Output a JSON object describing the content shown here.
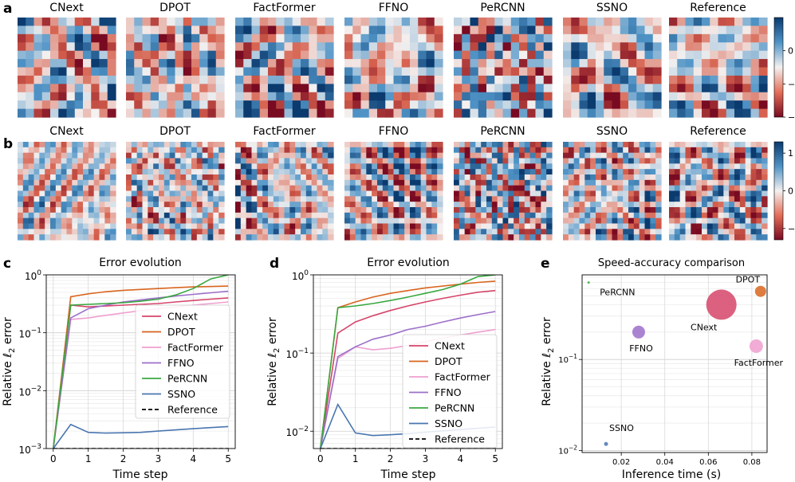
{
  "panels_fields": [
    {
      "letter": "a",
      "titles": [
        "CNext",
        "DPOT",
        "FactFormer",
        "FFNO",
        "PeRCNN",
        "SSNO",
        "Reference"
      ],
      "colorbar": {
        "ticks": [
          0,
          -2,
          -4
        ],
        "range": [
          -4,
          2
        ]
      }
    },
    {
      "letter": "b",
      "titles": [
        "CNext",
        "DPOT",
        "FactFormer",
        "FFNO",
        "PeRCNN",
        "SSNO",
        "Reference"
      ],
      "colorbar": {
        "ticks": [
          1,
          0,
          -1
        ],
        "range": [
          -1.3,
          1.3
        ]
      }
    }
  ],
  "colors": {
    "CNext": "#d6456a",
    "DPOT": "#d9651f",
    "FactFormer": "#ef9fcf",
    "FFNO": "#9c6fc9",
    "PeRCNN": "#39a840",
    "SSNO": "#4a76b0",
    "Reference": "#000000",
    "blue": "#1f4f8f",
    "red": "#b2182b"
  },
  "chart_data": [
    {
      "letter": "c",
      "type": "line",
      "title": "Error evolution",
      "xlabel": "Time step",
      "ylabel": "Relative ℓ2 error",
      "ylabel_main": "Relative ",
      "ylabel_var": "ℓ",
      "ylabel_sub": "2",
      "ylabel_tail": " error",
      "yscale": "log",
      "xlim": [
        -0.2,
        5.2
      ],
      "ylim": [
        0.001,
        1
      ],
      "xticks": [
        "0",
        "1",
        "2",
        "3",
        "4",
        "5"
      ],
      "yticks": [
        {
          "base": "10",
          "exp": "0"
        },
        {
          "base": "10",
          "exp": "-1"
        },
        {
          "base": "10",
          "exp": "-2"
        },
        {
          "base": "10",
          "exp": "-3"
        }
      ],
      "x": [
        0,
        0.5,
        1,
        1.5,
        2,
        2.5,
        3,
        3.5,
        4,
        4.5,
        5
      ],
      "series": [
        {
          "name": "CNext",
          "values": [
            0.001,
            0.3,
            0.28,
            0.29,
            0.3,
            0.31,
            0.32,
            0.34,
            0.36,
            0.38,
            0.4
          ]
        },
        {
          "name": "DPOT",
          "values": [
            0.001,
            0.42,
            0.47,
            0.51,
            0.54,
            0.56,
            0.58,
            0.6,
            0.62,
            0.63,
            0.64
          ]
        },
        {
          "name": "FactFormer",
          "values": [
            0.001,
            0.17,
            0.18,
            0.2,
            0.22,
            0.24,
            0.26,
            0.28,
            0.3,
            0.32,
            0.34
          ]
        },
        {
          "name": "FFNO",
          "values": [
            0.001,
            0.18,
            0.26,
            0.3,
            0.34,
            0.37,
            0.4,
            0.43,
            0.46,
            0.49,
            0.52
          ]
        },
        {
          "name": "PeRCNN",
          "values": [
            0.001,
            0.3,
            0.31,
            0.32,
            0.33,
            0.35,
            0.38,
            0.45,
            0.58,
            0.85,
            1.0
          ]
        },
        {
          "name": "SSNO",
          "values": [
            0.001,
            0.0026,
            0.0019,
            0.00185,
            0.00187,
            0.0019,
            0.002,
            0.0021,
            0.0022,
            0.0023,
            0.0024
          ]
        },
        {
          "name": "Reference",
          "values": [
            0.001,
            0.001,
            0.001,
            0.001,
            0.001,
            0.001,
            0.001,
            0.001,
            0.001,
            0.001,
            0.001
          ]
        }
      ]
    },
    {
      "letter": "d",
      "type": "line",
      "title": "Error evolution",
      "xlabel": "Time step",
      "ylabel": "Relative ℓ2 error",
      "ylabel_main": "Relative ",
      "ylabel_var": "ℓ",
      "ylabel_sub": "2",
      "ylabel_tail": " error",
      "yscale": "log",
      "xlim": [
        -0.2,
        5.2
      ],
      "ylim": [
        0.006,
        1
      ],
      "xticks": [
        "0",
        "1",
        "2",
        "3",
        "4",
        "5"
      ],
      "yticks": [
        {
          "base": "10",
          "exp": "0"
        },
        {
          "base": "10",
          "exp": "-1"
        },
        {
          "base": "10",
          "exp": "-2"
        }
      ],
      "x": [
        0,
        0.5,
        1,
        1.5,
        2,
        2.5,
        3,
        3.5,
        4,
        4.5,
        5
      ],
      "series": [
        {
          "name": "CNext",
          "values": [
            0.006,
            0.18,
            0.25,
            0.3,
            0.35,
            0.4,
            0.45,
            0.5,
            0.55,
            0.6,
            0.63
          ]
        },
        {
          "name": "DPOT",
          "values": [
            0.006,
            0.38,
            0.45,
            0.52,
            0.58,
            0.63,
            0.68,
            0.72,
            0.76,
            0.8,
            0.83
          ]
        },
        {
          "name": "FactFormer",
          "values": [
            0.006,
            0.085,
            0.12,
            0.11,
            0.115,
            0.125,
            0.14,
            0.155,
            0.17,
            0.185,
            0.2
          ]
        },
        {
          "name": "FFNO",
          "values": [
            0.006,
            0.09,
            0.12,
            0.15,
            0.17,
            0.2,
            0.22,
            0.25,
            0.28,
            0.31,
            0.34
          ]
        },
        {
          "name": "PeRCNN",
          "values": [
            0.006,
            0.38,
            0.4,
            0.43,
            0.47,
            0.52,
            0.58,
            0.65,
            0.76,
            0.95,
            1.0
          ]
        },
        {
          "name": "SSNO",
          "values": [
            0.006,
            0.022,
            0.0095,
            0.0088,
            0.009,
            0.0093,
            0.0097,
            0.0101,
            0.0105,
            0.0109,
            0.0113
          ]
        },
        {
          "name": "Reference",
          "values": [
            0.006,
            0.006,
            0.006,
            0.006,
            0.006,
            0.006,
            0.006,
            0.006,
            0.006,
            0.006,
            0.006
          ]
        }
      ]
    },
    {
      "letter": "e",
      "type": "scatter",
      "title": "Speed-accuracy comparison",
      "xlabel": "Inference time (s)",
      "ylabel": "Relative ℓ2 error",
      "ylabel_main": "Relative ",
      "ylabel_var": "ℓ",
      "ylabel_sub": "2",
      "ylabel_tail": " error",
      "yscale": "log",
      "xlim": [
        0.002,
        0.087
      ],
      "ylim": [
        0.0095,
        0.85
      ],
      "xticks": [
        {
          "value": 0.02,
          "label": "0.02"
        },
        {
          "value": 0.04,
          "label": "0.04"
        },
        {
          "value": 0.06,
          "label": "0.06"
        },
        {
          "value": 0.08,
          "label": "0.08"
        }
      ],
      "yticks": [
        {
          "value": 0.1,
          "base": "10",
          "exp": "-1"
        },
        {
          "value": 0.01,
          "base": "10",
          "exp": "-2"
        }
      ],
      "points": [
        {
          "name": "PeRCNN",
          "x": 0.005,
          "y": 0.7,
          "size": 1.5,
          "label": "PeRCNN",
          "label_pos": "right"
        },
        {
          "name": "DPOT",
          "x": 0.084,
          "y": 0.56,
          "size": 7,
          "label": "DPOT",
          "label_pos": "above"
        },
        {
          "name": "CNext",
          "x": 0.066,
          "y": 0.4,
          "size": 19,
          "label": "CNext",
          "label_pos": "below-left"
        },
        {
          "name": "FFNO",
          "x": 0.028,
          "y": 0.2,
          "size": 8,
          "label": "FFNO",
          "label_pos": "below"
        },
        {
          "name": "FactFormer",
          "x": 0.082,
          "y": 0.14,
          "size": 8.5,
          "label": "FactFormer",
          "label_pos": "below"
        },
        {
          "name": "SSNO",
          "x": 0.013,
          "y": 0.0118,
          "size": 2.5,
          "label": "SSNO",
          "label_pos": "above-right"
        }
      ]
    }
  ]
}
